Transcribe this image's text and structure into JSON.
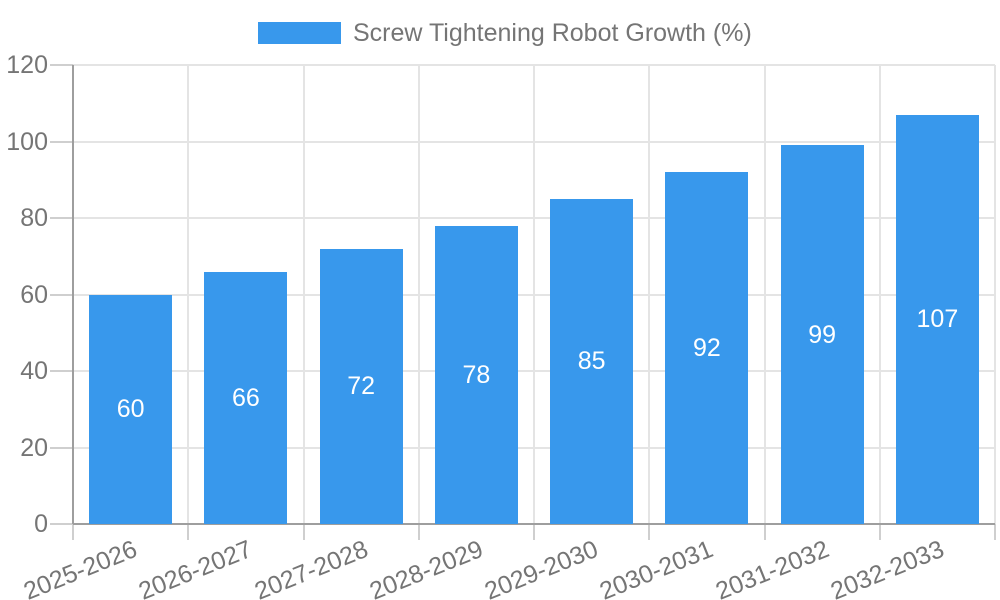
{
  "chart_data": {
    "type": "bar",
    "legend": "Screw Tightening Robot Growth (%)",
    "legend_position": "top",
    "categories": [
      "2025-2026",
      "2026-2027",
      "2027-2028",
      "2028-2029",
      "2029-2030",
      "2030-2031",
      "2031-2032",
      "2032-2033"
    ],
    "values": [
      60,
      66,
      72,
      78,
      85,
      92,
      99,
      107
    ],
    "yticks": [
      0,
      20,
      40,
      60,
      80,
      100,
      120
    ],
    "ylim": [
      0,
      120
    ],
    "grid": true,
    "xlabel": "",
    "ylabel": "",
    "colors": {
      "bar": "#3898EC",
      "label_text": "#757575",
      "value_text": "#FFFFFF",
      "gridline": "#E4E4E4",
      "tick": "#CFCFCF",
      "axis": "#9E9E9E",
      "background": "#FFFFFF"
    }
  }
}
